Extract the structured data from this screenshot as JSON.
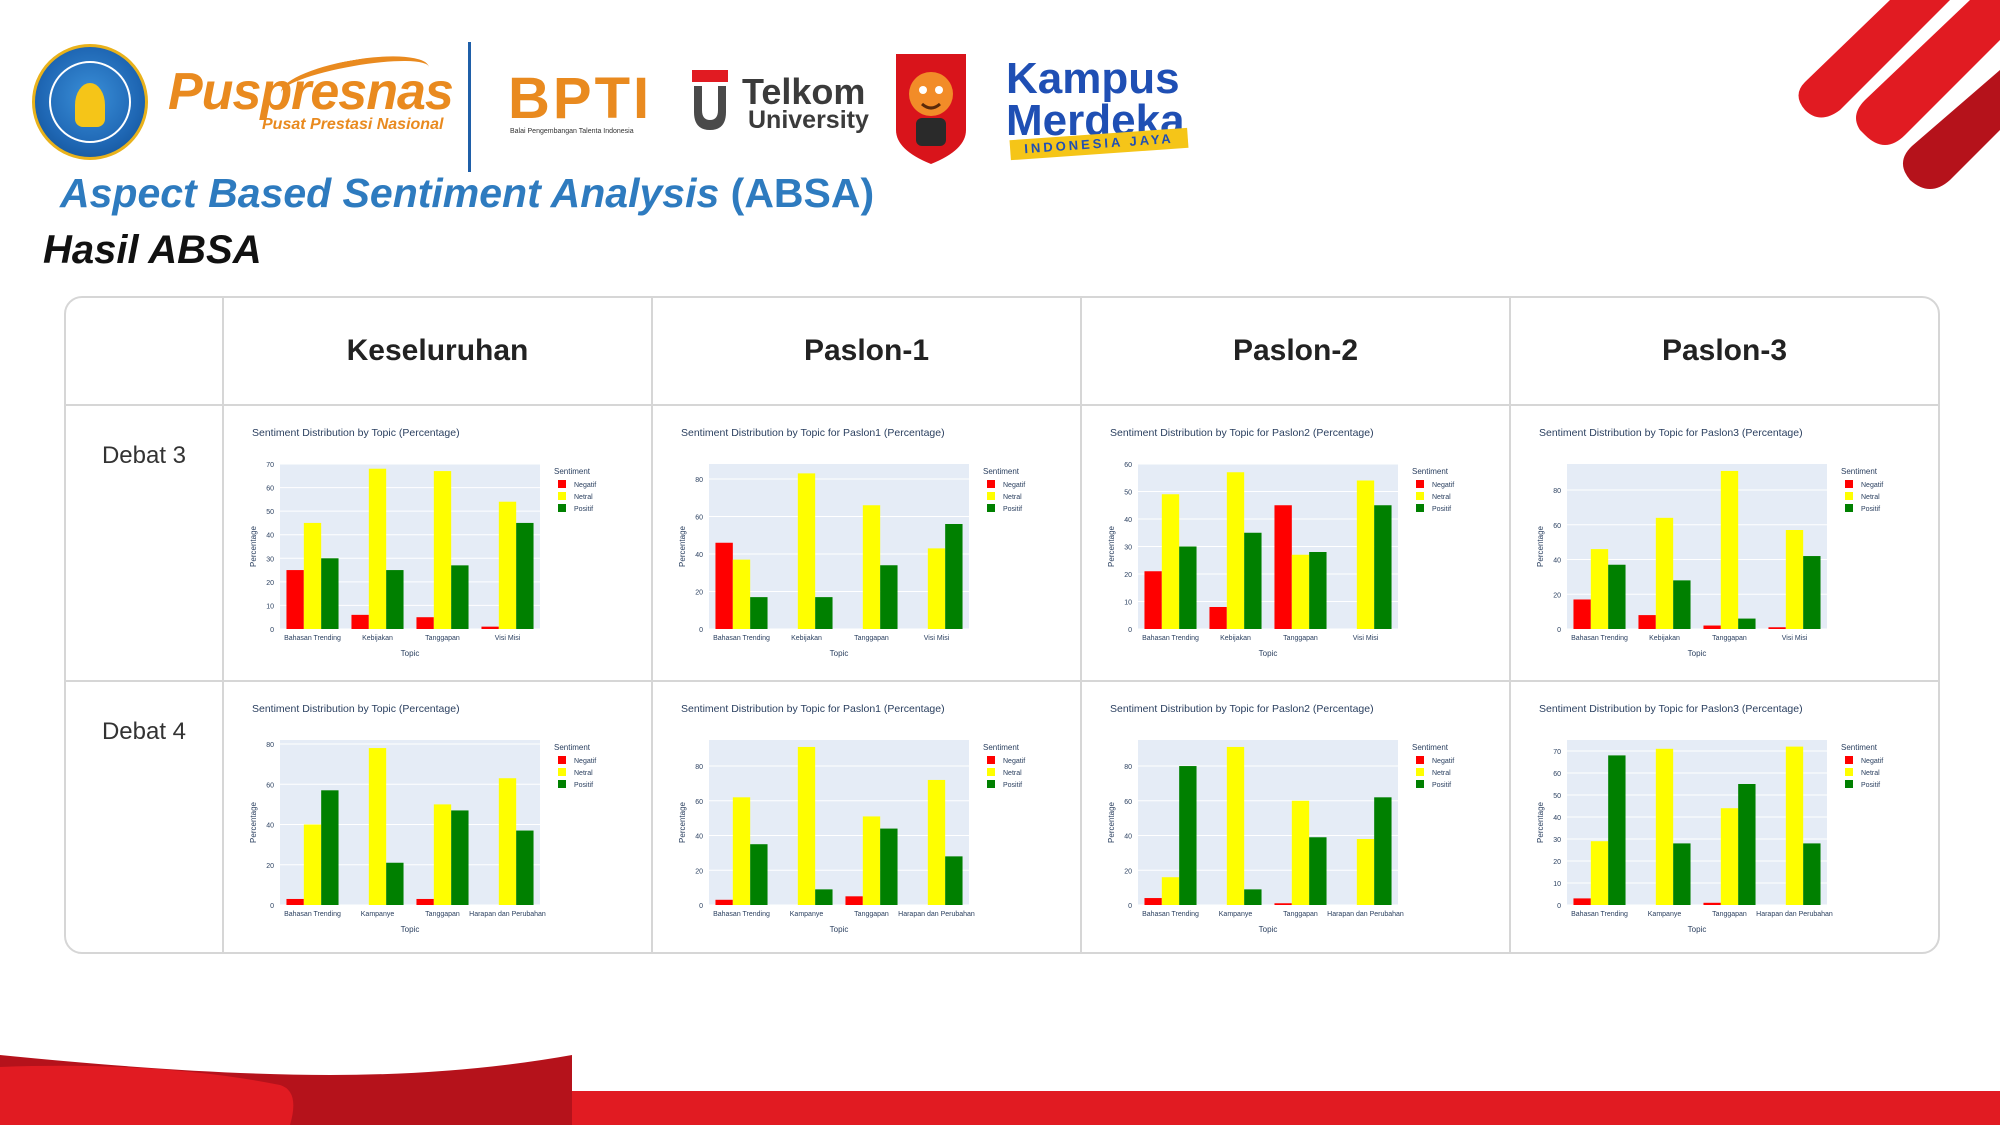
{
  "header": {
    "logos": {
      "puspresnas": "Puspresnas",
      "puspresnas_sub": "Pusat Prestasi Nasional",
      "bpti": "BPTI",
      "bpti_sub": "Balai Pengembangan Talenta Indonesia",
      "telkom_line1": "Telkom",
      "telkom_line2": "University",
      "kampus_line1": "Kampus",
      "kampus_line2": "Merdeka",
      "kampus_banner": "INDONESIA JAYA"
    },
    "title_italic": "Aspect Based Sentiment Analysis",
    "title_paren": "(ABSA)",
    "subtitle": "Hasil ABSA"
  },
  "table": {
    "columns": [
      "Keseluruhan",
      "Paslon-1",
      "Paslon-2",
      "Paslon-3"
    ],
    "rows": [
      "Debat 3",
      "Debat 4"
    ]
  },
  "colors": {
    "Negatif": "#ff0000",
    "Netral": "#ffff00",
    "Positif": "#008000",
    "plot_bg": "#e5ecf6",
    "title_blue": "#2e7bbf",
    "brand_red": "#e11b22"
  },
  "chart_data": [
    {
      "type": "bar",
      "title": "Sentiment Distribution by Topic (Percentage)",
      "xlabel": "Topic",
      "ylabel": "Percentage",
      "legend_title": "Sentiment",
      "legend_position": "right",
      "ylim": [
        0,
        70
      ],
      "yticks": [
        0,
        10,
        20,
        30,
        40,
        50,
        60,
        70
      ],
      "categories": [
        "Bahasan Trending",
        "Kebijakan",
        "Tanggapan",
        "Visi Misi"
      ],
      "series": [
        {
          "name": "Negatif",
          "values": [
            25,
            6,
            5,
            1
          ]
        },
        {
          "name": "Netral",
          "values": [
            45,
            68,
            67,
            54
          ]
        },
        {
          "name": "Positif",
          "values": [
            30,
            25,
            27,
            45
          ]
        }
      ]
    },
    {
      "type": "bar",
      "title": "Sentiment Distribution by Topic for Paslon1 (Percentage)",
      "xlabel": "Topic",
      "ylabel": "Percentage",
      "legend_title": "Sentiment",
      "legend_position": "right",
      "ylim": [
        0,
        88
      ],
      "yticks": [
        0,
        20,
        40,
        60,
        80
      ],
      "categories": [
        "Bahasan Trending",
        "Kebijakan",
        "Tanggapan",
        "Visi Misi"
      ],
      "series": [
        {
          "name": "Negatif",
          "values": [
            46,
            0,
            0,
            0
          ]
        },
        {
          "name": "Netral",
          "values": [
            37,
            83,
            66,
            43
          ]
        },
        {
          "name": "Positif",
          "values": [
            17,
            17,
            34,
            56
          ]
        }
      ]
    },
    {
      "type": "bar",
      "title": "Sentiment Distribution by Topic for Paslon2 (Percentage)",
      "xlabel": "Topic",
      "ylabel": "Percentage",
      "legend_title": "Sentiment",
      "legend_position": "right",
      "ylim": [
        0,
        60
      ],
      "yticks": [
        0,
        10,
        20,
        30,
        40,
        50,
        60
      ],
      "categories": [
        "Bahasan Trending",
        "Kebijakan",
        "Tanggapan",
        "Visi Misi"
      ],
      "series": [
        {
          "name": "Negatif",
          "values": [
            21,
            8,
            45,
            0
          ]
        },
        {
          "name": "Netral",
          "values": [
            49,
            57,
            27,
            54
          ]
        },
        {
          "name": "Positif",
          "values": [
            30,
            35,
            28,
            45
          ]
        }
      ]
    },
    {
      "type": "bar",
      "title": "Sentiment Distribution by Topic for Paslon3 (Percentage)",
      "xlabel": "Topic",
      "ylabel": "Percentage",
      "legend_title": "Sentiment",
      "legend_position": "right",
      "ylim": [
        0,
        95
      ],
      "yticks": [
        0,
        20,
        40,
        60,
        80
      ],
      "categories": [
        "Bahasan Trending",
        "Kebijakan",
        "Tanggapan",
        "Visi Misi"
      ],
      "series": [
        {
          "name": "Negatif",
          "values": [
            17,
            8,
            2,
            1
          ]
        },
        {
          "name": "Netral",
          "values": [
            46,
            64,
            91,
            57
          ]
        },
        {
          "name": "Positif",
          "values": [
            37,
            28,
            6,
            42
          ]
        }
      ]
    },
    {
      "type": "bar",
      "title": "Sentiment Distribution by Topic (Percentage)",
      "xlabel": "Topic",
      "ylabel": "Percentage",
      "legend_title": "Sentiment",
      "legend_position": "right",
      "ylim": [
        0,
        82
      ],
      "yticks": [
        0,
        20,
        40,
        60,
        80
      ],
      "categories": [
        "Bahasan Trending",
        "Kampanye",
        "Tanggapan",
        "Harapan dan Perubahan"
      ],
      "series": [
        {
          "name": "Negatif",
          "values": [
            3,
            0,
            3,
            0
          ]
        },
        {
          "name": "Netral",
          "values": [
            40,
            78,
            50,
            63
          ]
        },
        {
          "name": "Positif",
          "values": [
            57,
            21,
            47,
            37
          ]
        }
      ]
    },
    {
      "type": "bar",
      "title": "Sentiment Distribution by Topic for Paslon1 (Percentage)",
      "xlabel": "Topic",
      "ylabel": "Percentage",
      "legend_title": "Sentiment",
      "legend_position": "right",
      "ylim": [
        0,
        95
      ],
      "yticks": [
        0,
        20,
        40,
        60,
        80
      ],
      "categories": [
        "Bahasan Trending",
        "Kampanye",
        "Tanggapan",
        "Harapan dan Perubahan"
      ],
      "series": [
        {
          "name": "Negatif",
          "values": [
            3,
            0,
            5,
            0
          ]
        },
        {
          "name": "Netral",
          "values": [
            62,
            91,
            51,
            72
          ]
        },
        {
          "name": "Positif",
          "values": [
            35,
            9,
            44,
            28
          ]
        }
      ]
    },
    {
      "type": "bar",
      "title": "Sentiment Distribution by Topic for Paslon2 (Percentage)",
      "xlabel": "Topic",
      "ylabel": "Percentage",
      "legend_title": "Sentiment",
      "legend_position": "right",
      "ylim": [
        0,
        95
      ],
      "yticks": [
        0,
        20,
        40,
        60,
        80
      ],
      "categories": [
        "Bahasan Trending",
        "Kampanye",
        "Tanggapan",
        "Harapan dan Perubahan"
      ],
      "series": [
        {
          "name": "Negatif",
          "values": [
            4,
            0,
            1,
            0
          ]
        },
        {
          "name": "Netral",
          "values": [
            16,
            91,
            60,
            38
          ]
        },
        {
          "name": "Positif",
          "values": [
            80,
            9,
            39,
            62
          ]
        }
      ]
    },
    {
      "type": "bar",
      "title": "Sentiment Distribution by Topic for Paslon3 (Percentage)",
      "xlabel": "Topic",
      "ylabel": "Percentage",
      "legend_title": "Sentiment",
      "legend_position": "right",
      "ylim": [
        0,
        75
      ],
      "yticks": [
        0,
        10,
        20,
        30,
        40,
        50,
        60,
        70
      ],
      "categories": [
        "Bahasan Trending",
        "Kampanye",
        "Tanggapan",
        "Harapan dan Perubahan"
      ],
      "series": [
        {
          "name": "Negatif",
          "values": [
            3,
            0,
            1,
            0
          ]
        },
        {
          "name": "Netral",
          "values": [
            29,
            71,
            44,
            72
          ]
        },
        {
          "name": "Positif",
          "values": [
            68,
            28,
            55,
            28
          ]
        }
      ]
    }
  ]
}
